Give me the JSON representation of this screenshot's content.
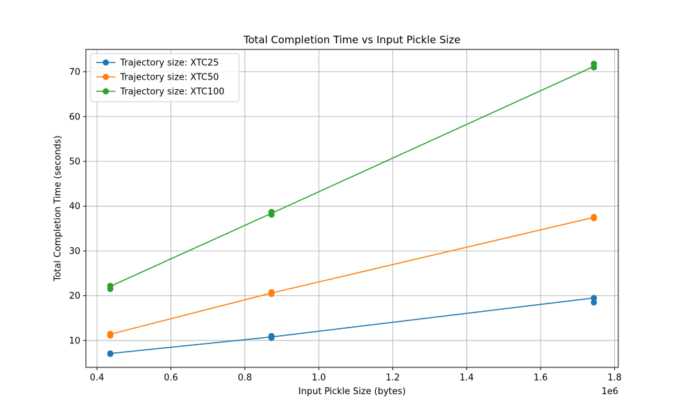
{
  "chart_data": {
    "type": "line",
    "title": "Total Completion Time vs Input Pickle Size",
    "xlabel": "Input Pickle Size (bytes)",
    "ylabel": "Total Completion Time (seconds)",
    "x_offset_label": "1e6",
    "xlim": [
      0.37,
      1.81
    ],
    "ylim": [
      4.0,
      75.0
    ],
    "x_unit_scale": 1000000,
    "xticks": [
      0.4,
      0.6,
      0.8,
      1.0,
      1.2,
      1.4,
      1.6,
      1.8
    ],
    "xtick_labels": [
      "0.4",
      "0.6",
      "0.8",
      "1.0",
      "1.2",
      "1.4",
      "1.6",
      "1.8"
    ],
    "yticks": [
      10,
      20,
      30,
      40,
      50,
      60,
      70
    ],
    "ytick_labels": [
      "10",
      "20",
      "30",
      "40",
      "50",
      "60",
      "70"
    ],
    "grid": true,
    "legend_position": "top-left",
    "series": [
      {
        "name": "Trajectory size: XTC25",
        "color": "#1f77b4",
        "line": [
          [
            0.436,
            7.1
          ],
          [
            0.872,
            10.8
          ],
          [
            1.744,
            19.5
          ]
        ],
        "points": [
          [
            0.436,
            7.1
          ],
          [
            0.436,
            7.0
          ],
          [
            0.872,
            11.0
          ],
          [
            0.872,
            10.6
          ],
          [
            1.744,
            19.5
          ],
          [
            1.744,
            18.5
          ]
        ]
      },
      {
        "name": "Trajectory size: XTC50",
        "color": "#ff7f0e",
        "line": [
          [
            0.436,
            11.4
          ],
          [
            0.872,
            20.6
          ],
          [
            1.744,
            37.5
          ]
        ],
        "points": [
          [
            0.436,
            11.5
          ],
          [
            0.436,
            11.1
          ],
          [
            0.872,
            20.8
          ],
          [
            0.872,
            20.4
          ],
          [
            1.744,
            37.6
          ],
          [
            1.744,
            37.3
          ]
        ]
      },
      {
        "name": "Trajectory size: XTC100",
        "color": "#2ca02c",
        "line": [
          [
            0.436,
            22.1
          ],
          [
            0.872,
            38.4
          ],
          [
            1.744,
            71.2
          ]
        ],
        "points": [
          [
            0.436,
            22.2
          ],
          [
            0.436,
            21.5
          ],
          [
            0.872,
            38.7
          ],
          [
            0.872,
            38.1
          ],
          [
            1.744,
            71.8
          ],
          [
            1.744,
            71.0
          ]
        ]
      }
    ]
  }
}
